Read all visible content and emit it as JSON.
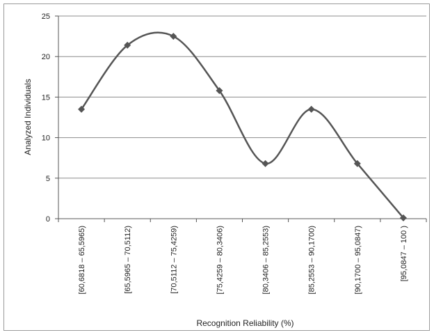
{
  "chart_data": {
    "type": "line",
    "smooth": true,
    "title": "",
    "xlabel": "Recognition Reliability (%)",
    "ylabel": "Analyzed Individuals",
    "ylim": [
      0,
      25
    ],
    "yticks": [
      0,
      5,
      10,
      15,
      20,
      25
    ],
    "grid": "horizontal",
    "legend": "none",
    "categories": [
      "[60,6818 – 65,5965)",
      "[65,5965 – 70,5112)",
      "[70,5112 – 75,4259)",
      "[75,4259 – 80,3406)",
      "[80,3406 – 85,2553)",
      "[85,2553 – 90,1700)",
      "[90,1700 – 95,0847)",
      "[95,0847 – 100 )"
    ],
    "values": [
      13.5,
      21.4,
      22.5,
      15.8,
      6.8,
      13.5,
      6.8,
      0.1
    ],
    "colors": {
      "line": "#555555",
      "marker": "#555555",
      "grid": "#8c8c8c",
      "axis": "#555555"
    }
  }
}
